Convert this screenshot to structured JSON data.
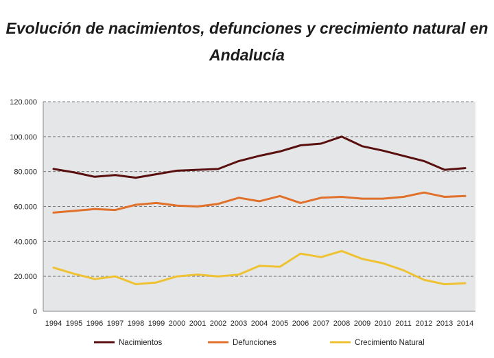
{
  "chart_data": {
    "type": "line",
    "title": "Evolución de nacimientos, defunciones y crecimiento natural en Andalucía",
    "x": [
      "1994",
      "1995",
      "1996",
      "1997",
      "1998",
      "1999",
      "2000",
      "2001",
      "2002",
      "2003",
      "2004",
      "2005",
      "2006",
      "2007",
      "2008",
      "2009",
      "2010",
      "2011",
      "2012",
      "2013",
      "2014"
    ],
    "y_ticks": [
      "0",
      "20.000",
      "40.000",
      "60.000",
      "80.000",
      "100.000",
      "120.000"
    ],
    "ylim": [
      0,
      120000
    ],
    "grid": "horizontal dashed",
    "legend": "bottom",
    "series": [
      {
        "name": "Nacimientos",
        "color": "#5a0f0f",
        "values": [
          81500,
          79500,
          77000,
          78000,
          76500,
          78500,
          80500,
          81000,
          81500,
          86000,
          89000,
          91500,
          95000,
          96000,
          100000,
          94500,
          92000,
          89000,
          86000,
          81000,
          82000
        ]
      },
      {
        "name": "Defunciones",
        "color": "#e0702a",
        "values": [
          56500,
          57500,
          58500,
          58000,
          61000,
          62000,
          60500,
          60000,
          61500,
          65000,
          63000,
          66000,
          62000,
          65000,
          65500,
          64500,
          64500,
          65500,
          68000,
          65500,
          66000
        ]
      },
      {
        "name": "Crecimiento Natural",
        "color": "#eec232",
        "values": [
          25000,
          21500,
          18500,
          20000,
          15500,
          16500,
          20000,
          21000,
          20000,
          21000,
          26000,
          25500,
          33000,
          31000,
          34500,
          30000,
          27500,
          23500,
          18000,
          15500,
          16000
        ]
      }
    ]
  }
}
